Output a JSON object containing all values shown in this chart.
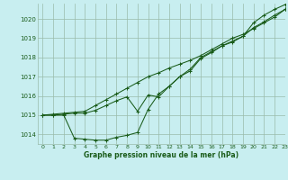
{
  "title": "Graphe pression niveau de la mer (hPa)",
  "bg_color": "#c8eef0",
  "grid_color": "#99bbaa",
  "line_color": "#1a5c1a",
  "xlim": [
    -0.5,
    23
  ],
  "ylim": [
    1013.5,
    1020.8
  ],
  "yticks": [
    1014,
    1015,
    1016,
    1017,
    1018,
    1019,
    1020
  ],
  "xticks": [
    0,
    1,
    2,
    3,
    4,
    5,
    6,
    7,
    8,
    9,
    10,
    11,
    12,
    13,
    14,
    15,
    16,
    17,
    18,
    19,
    20,
    21,
    22,
    23
  ],
  "series": [
    [
      1015.0,
      1015.0,
      1015.0,
      1013.8,
      1013.75,
      1013.7,
      1013.7,
      1013.85,
      1013.95,
      1014.1,
      1015.3,
      1016.1,
      1016.5,
      1017.0,
      1017.4,
      1018.0,
      1018.3,
      1018.6,
      1018.8,
      1019.1,
      1019.8,
      1020.2,
      1020.5,
      1020.75
    ],
    [
      1015.0,
      1015.0,
      1015.05,
      1015.1,
      1015.1,
      1015.25,
      1015.5,
      1015.75,
      1015.95,
      1015.2,
      1016.05,
      1015.95,
      1016.5,
      1017.0,
      1017.3,
      1017.95,
      1018.25,
      1018.6,
      1018.85,
      1019.1,
      1019.55,
      1019.85,
      1020.2,
      1020.5
    ],
    [
      1015.0,
      1015.05,
      1015.1,
      1015.15,
      1015.2,
      1015.5,
      1015.8,
      1016.1,
      1016.4,
      1016.7,
      1017.0,
      1017.2,
      1017.45,
      1017.65,
      1017.85,
      1018.1,
      1018.4,
      1018.7,
      1019.0,
      1019.2,
      1019.5,
      1019.8,
      1020.1,
      1020.5
    ]
  ]
}
